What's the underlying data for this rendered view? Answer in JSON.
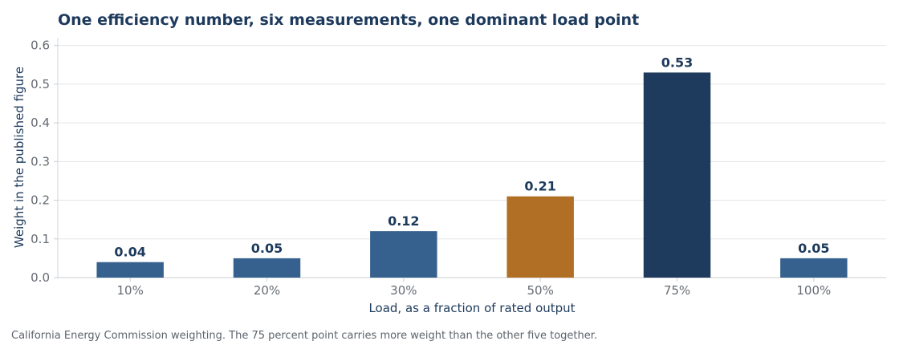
{
  "chart_data": {
    "type": "bar",
    "title": "One efficiency number, six measurements, one dominant load point",
    "xlabel": "Load, as a fraction of rated output",
    "ylabel": "Weight in the published figure",
    "categories": [
      "10%",
      "20%",
      "30%",
      "50%",
      "75%",
      "100%"
    ],
    "values": [
      0.04,
      0.05,
      0.12,
      0.21,
      0.53,
      0.05
    ],
    "value_labels": [
      "0.04",
      "0.05",
      "0.12",
      "0.21",
      "0.53",
      "0.05"
    ],
    "ylim": [
      0,
      0.62
    ],
    "yticks": [
      0.0,
      0.1,
      0.2,
      0.3,
      0.4,
      0.5,
      0.6
    ],
    "ytick_labels": [
      "0.0",
      "0.1",
      "0.2",
      "0.3",
      "0.4",
      "0.5",
      "0.6"
    ],
    "grid": "horizontal",
    "legend": "none",
    "bar_colors": [
      "#36618e",
      "#36618e",
      "#36618e",
      "#b06f24",
      "#1e3a5c",
      "#36618e"
    ],
    "caption": "California Energy Commission weighting. The 75 percent point carries more weight than the other five together."
  }
}
